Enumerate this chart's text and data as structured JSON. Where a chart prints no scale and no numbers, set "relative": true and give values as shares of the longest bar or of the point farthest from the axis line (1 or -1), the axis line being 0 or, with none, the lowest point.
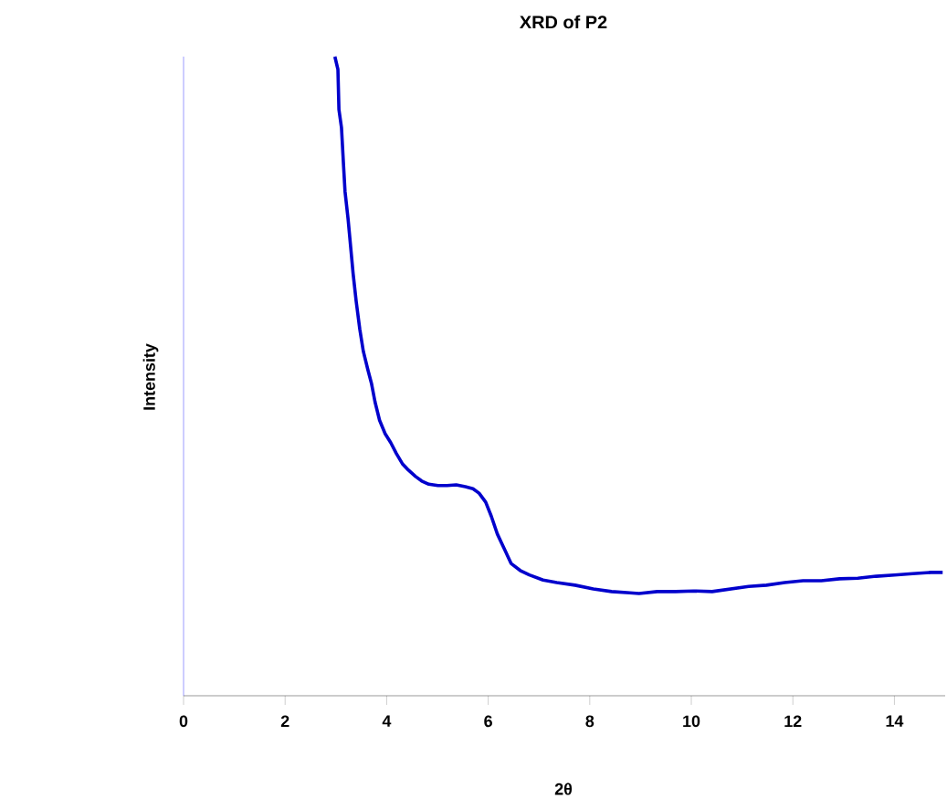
{
  "chart_data": {
    "type": "line",
    "title": "XRD of P2",
    "xlabel": "2θ",
    "ylabel": "Intensity",
    "relative": true,
    "xlim": [
      0,
      15
    ],
    "xticks": [
      0,
      2,
      4,
      6,
      8,
      10,
      12,
      14
    ],
    "line_style": "solid",
    "marker": "none",
    "x": [
      2.98,
      3.04,
      3.06,
      3.11,
      3.15,
      3.18,
      3.24,
      3.29,
      3.34,
      3.4,
      3.47,
      3.54,
      3.63,
      3.7,
      3.77,
      3.86,
      3.97,
      4.08,
      4.19,
      4.31,
      4.43,
      4.57,
      4.69,
      4.83,
      5.01,
      5.19,
      5.37,
      5.55,
      5.7,
      5.82,
      5.95,
      6.06,
      6.18,
      6.31,
      6.45,
      6.63,
      6.81,
      7.08,
      7.35,
      7.71,
      8.07,
      8.43,
      8.79,
      8.97,
      9.33,
      9.69,
      10.05,
      10.41,
      10.77,
      11.13,
      11.48,
      11.84,
      12.2,
      12.56,
      12.92,
      13.28,
      13.64,
      14.0,
      14.36,
      14.72,
      14.95
    ],
    "series": [
      {
        "color": "#0000cc",
        "values": [
          1.0,
          0.98,
          0.917,
          0.889,
          0.831,
          0.789,
          0.746,
          0.703,
          0.66,
          0.617,
          0.574,
          0.539,
          0.51,
          0.489,
          0.46,
          0.431,
          0.41,
          0.396,
          0.379,
          0.363,
          0.353,
          0.343,
          0.336,
          0.331,
          0.329,
          0.329,
          0.33,
          0.327,
          0.324,
          0.317,
          0.303,
          0.281,
          0.253,
          0.231,
          0.207,
          0.196,
          0.189,
          0.181,
          0.177,
          0.173,
          0.167,
          0.163,
          0.161,
          0.16,
          0.163,
          0.163,
          0.164,
          0.163,
          0.167,
          0.171,
          0.173,
          0.177,
          0.18,
          0.18,
          0.183,
          0.184,
          0.187,
          0.189,
          0.191,
          0.193,
          0.193
        ]
      }
    ]
  }
}
